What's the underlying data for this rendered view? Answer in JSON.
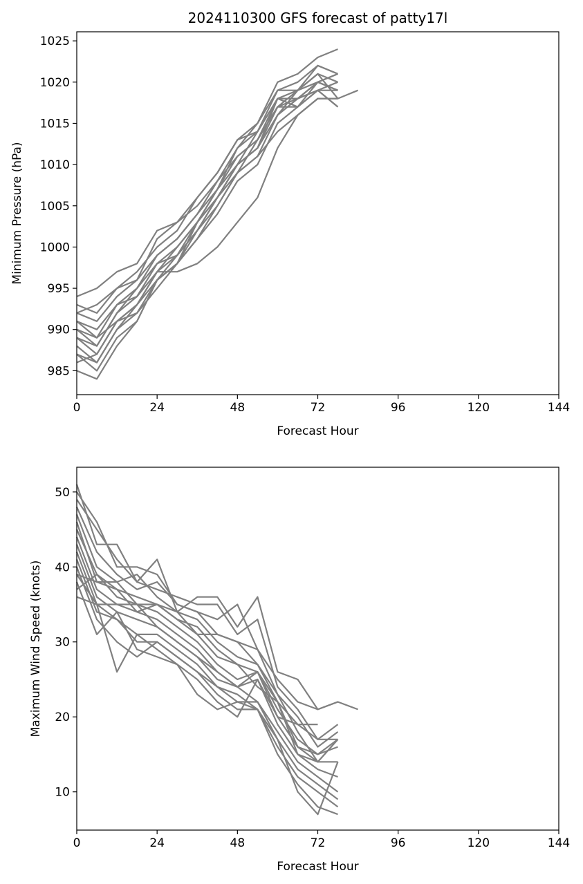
{
  "title": "2024110300 GFS forecast of patty17l",
  "colors": {
    "line": "#808080",
    "axes": "#000000",
    "background": "#ffffff"
  },
  "chart_data": [
    {
      "type": "line",
      "title": "2024110300 GFS forecast of patty17l",
      "xlabel": "Forecast Hour",
      "ylabel": "Minimum Pressure (hPa)",
      "xlim": [
        0,
        144
      ],
      "ylim": [
        982.1,
        1026.1
      ],
      "xticks": [
        0,
        24,
        48,
        72,
        96,
        120,
        144
      ],
      "yticks": [
        985,
        990,
        995,
        1000,
        1005,
        1010,
        1015,
        1020,
        1025
      ],
      "grid": false,
      "legend": "none",
      "series": [
        {
          "x": [
            0,
            6,
            12,
            18,
            24,
            30,
            36,
            42,
            48,
            54,
            60,
            66,
            72,
            78
          ],
          "values": [
            994,
            995,
            997,
            998,
            1002,
            1003,
            1006,
            1009,
            1013,
            1015,
            1020,
            1021,
            1023,
            1024
          ]
        },
        {
          "x": [
            0,
            6,
            12,
            18,
            24,
            30,
            36,
            42,
            48,
            54,
            60,
            66,
            72,
            78
          ],
          "values": [
            993,
            992,
            995,
            996,
            1001,
            1003,
            1005,
            1008,
            1012,
            1015,
            1019,
            1020,
            1022,
            1021
          ]
        },
        {
          "x": [
            0,
            6,
            12,
            18,
            24,
            30,
            36,
            42,
            48,
            54,
            60,
            66,
            72,
            78
          ],
          "values": [
            992,
            993,
            995,
            997,
            1000,
            1002,
            1006,
            1009,
            1013,
            1014,
            1019,
            1019,
            1021,
            1020
          ]
        },
        {
          "x": [
            0,
            6,
            12,
            18,
            24,
            30,
            36,
            42,
            48,
            54,
            60,
            66,
            72,
            78
          ],
          "values": [
            991,
            990,
            993,
            995,
            999,
            1001,
            1004,
            1007,
            1011,
            1013,
            1018,
            1018,
            1020,
            1019
          ]
        },
        {
          "x": [
            0,
            6,
            12,
            18,
            24,
            30,
            36,
            42,
            48,
            54,
            60,
            66,
            72,
            78
          ],
          "values": [
            990,
            988,
            992,
            994,
            998,
            1000,
            1003,
            1007,
            1010,
            1012,
            1017,
            1019,
            1021,
            1018
          ]
        },
        {
          "x": [
            0,
            6,
            12,
            18,
            24,
            30,
            36,
            42,
            48,
            54,
            60,
            66,
            72,
            78
          ],
          "values": [
            989,
            987,
            991,
            993,
            997,
            999,
            1003,
            1006,
            1010,
            1012,
            1018,
            1018,
            1019,
            1017
          ]
        },
        {
          "x": [
            0,
            6,
            12,
            18,
            24,
            30,
            36,
            42,
            48,
            54,
            60,
            66,
            72,
            78
          ],
          "values": [
            988,
            986,
            990,
            992,
            996,
            998,
            1002,
            1005,
            1009,
            1011,
            1016,
            1018,
            1020,
            1021
          ]
        },
        {
          "x": [
            0,
            6,
            12,
            18,
            24,
            30,
            36,
            42,
            48,
            54,
            60,
            66,
            72,
            78
          ],
          "values": [
            987,
            985,
            989,
            991,
            996,
            998,
            1001,
            1004,
            1008,
            1010,
            1015,
            1017,
            1019,
            1019
          ]
        },
        {
          "x": [
            0,
            6,
            12,
            18,
            24,
            30,
            36,
            42,
            48,
            54,
            60,
            66,
            72,
            78,
            84
          ],
          "values": [
            986,
            987,
            991,
            993,
            997,
            997,
            998,
            1000,
            1003,
            1006,
            1012,
            1016,
            1018,
            1018,
            1019
          ]
        },
        {
          "x": [
            0,
            6,
            12,
            18,
            24,
            30,
            36,
            42,
            48,
            54,
            60,
            66,
            72,
            78
          ],
          "values": [
            985,
            984,
            988,
            991,
            996,
            999,
            1002,
            1006,
            1010,
            1014,
            1018,
            1017,
            1019,
            1020
          ]
        },
        {
          "x": [
            0,
            6,
            12,
            18,
            24,
            30,
            36,
            42,
            48,
            54,
            60,
            66,
            72,
            78
          ],
          "values": [
            992,
            991,
            994,
            996,
            999,
            1001,
            1004,
            1008,
            1011,
            1013,
            1017,
            1017,
            1020,
            1019
          ]
        },
        {
          "x": [
            0,
            6,
            12,
            18,
            24,
            30,
            36,
            42,
            48,
            54,
            60,
            66,
            72,
            78
          ],
          "values": [
            989,
            988,
            992,
            995,
            998,
            999,
            1002,
            1006,
            1009,
            1011,
            1014,
            1016,
            1018,
            1018
          ]
        },
        {
          "x": [
            0,
            6,
            12,
            18,
            24,
            30,
            36,
            42,
            48,
            54,
            60,
            66,
            72,
            78
          ],
          "values": [
            990,
            989,
            993,
            994,
            997,
            1000,
            1003,
            1007,
            1012,
            1014,
            1018,
            1019,
            1020,
            1021
          ]
        },
        {
          "x": [
            0,
            6,
            12,
            18,
            24,
            30,
            36,
            42,
            48,
            54,
            60,
            66,
            72,
            78
          ],
          "values": [
            987,
            986,
            990,
            993,
            996,
            998,
            1001,
            1005,
            1009,
            1013,
            1017,
            1018,
            1019,
            1017
          ]
        },
        {
          "x": [
            0,
            6,
            12,
            18,
            24,
            30,
            36,
            42,
            48,
            54,
            60,
            66,
            72,
            78
          ],
          "values": [
            991,
            989,
            991,
            992,
            995,
            998,
            1003,
            1006,
            1010,
            1012,
            1016,
            1019,
            1022,
            1021
          ]
        }
      ]
    },
    {
      "type": "line",
      "title": "",
      "xlabel": "Forecast Hour",
      "ylabel": "Maximum Wind Speed (knots)",
      "xlim": [
        0,
        144
      ],
      "ylim": [
        4.9,
        53.3
      ],
      "xticks": [
        0,
        24,
        48,
        72,
        96,
        120,
        144
      ],
      "yticks": [
        10,
        20,
        30,
        40,
        50
      ],
      "grid": false,
      "legend": "none",
      "series": [
        {
          "x": [
            0,
            6,
            12,
            18,
            24,
            30,
            36,
            42,
            48,
            54,
            60,
            66,
            72,
            78
          ],
          "values": [
            51,
            43,
            43,
            38,
            41,
            34,
            36,
            36,
            32,
            36,
            26,
            25,
            21,
            22
          ]
        },
        {
          "x": [
            0,
            6,
            12,
            18,
            24,
            30,
            36,
            42,
            48,
            54,
            60,
            66,
            72,
            78,
            84
          ],
          "values": [
            50,
            46,
            40,
            40,
            39,
            35,
            34,
            33,
            35,
            29,
            25,
            22,
            21,
            22,
            21
          ]
        },
        {
          "x": [
            0,
            6,
            12,
            18,
            24,
            30,
            36,
            42,
            48,
            54,
            60,
            66,
            72,
            78
          ],
          "values": [
            49,
            45,
            41,
            38,
            37,
            36,
            35,
            35,
            31,
            33,
            24,
            21,
            17,
            19
          ]
        },
        {
          "x": [
            0,
            6,
            12,
            18,
            24,
            30,
            36,
            42,
            48,
            54,
            60,
            66,
            72,
            78
          ],
          "values": [
            48,
            42,
            39,
            37,
            38,
            35,
            34,
            31,
            30,
            29,
            23,
            20,
            16,
            18
          ]
        },
        {
          "x": [
            0,
            6,
            12,
            18,
            24,
            30,
            36,
            42,
            48,
            54,
            60,
            66,
            72,
            78
          ],
          "values": [
            47,
            40,
            38,
            39,
            36,
            34,
            33,
            30,
            28,
            27,
            22,
            19,
            17,
            17
          ]
        },
        {
          "x": [
            0,
            6,
            12,
            18,
            24,
            30,
            36,
            42,
            48,
            54,
            60,
            66,
            72,
            78
          ],
          "values": [
            46,
            38,
            37,
            36,
            35,
            33,
            31,
            28,
            27,
            26,
            21,
            17,
            15,
            17
          ]
        },
        {
          "x": [
            0,
            6,
            12,
            18,
            24,
            30,
            36,
            42,
            48,
            54,
            60,
            66,
            72,
            78
          ],
          "values": [
            45,
            39,
            36,
            35,
            34,
            32,
            30,
            27,
            25,
            26,
            20,
            16,
            14,
            14
          ]
        },
        {
          "x": [
            0,
            6,
            12,
            18,
            24,
            30,
            36,
            42,
            48,
            54,
            60,
            66,
            72,
            78
          ],
          "values": [
            44,
            37,
            35,
            34,
            33,
            31,
            29,
            26,
            24,
            25,
            19,
            15,
            13,
            12
          ]
        },
        {
          "x": [
            0,
            6,
            12,
            18,
            24,
            30,
            36,
            42,
            48,
            54,
            60,
            66,
            72,
            78
          ],
          "values": [
            43,
            36,
            34,
            33,
            32,
            30,
            28,
            25,
            24,
            22,
            18,
            14,
            12,
            10
          ]
        },
        {
          "x": [
            0,
            6,
            12,
            18,
            24,
            30,
            36,
            42,
            48,
            54,
            60,
            66,
            72,
            78
          ],
          "values": [
            42,
            35,
            33,
            31,
            31,
            29,
            27,
            24,
            23,
            21,
            17,
            13,
            11,
            9
          ]
        },
        {
          "x": [
            0,
            6,
            12,
            18,
            24,
            30,
            36,
            42,
            48,
            54,
            60,
            66,
            72,
            78
          ],
          "values": [
            41,
            34,
            33,
            30,
            30,
            28,
            26,
            24,
            22,
            21,
            16,
            12,
            10,
            8
          ]
        },
        {
          "x": [
            0,
            6,
            12,
            18,
            24,
            30,
            36,
            42,
            48,
            54,
            60,
            66,
            72,
            78
          ],
          "values": [
            40,
            33,
            30,
            28,
            30,
            28,
            26,
            23,
            21,
            21,
            15,
            11,
            8,
            7
          ]
        },
        {
          "x": [
            0,
            6,
            12,
            18,
            24,
            30,
            36,
            42,
            48,
            54,
            60,
            66,
            72,
            78
          ],
          "values": [
            39,
            35,
            26,
            31,
            29,
            27,
            23,
            21,
            22,
            22,
            17,
            10,
            7,
            14
          ]
        },
        {
          "x": [
            0,
            6,
            12,
            18,
            24,
            30,
            36,
            42,
            48,
            54,
            60,
            66,
            72
          ],
          "values": [
            38,
            31,
            34,
            29,
            28,
            27,
            25,
            22,
            20,
            25,
            20,
            19,
            19
          ]
        },
        {
          "x": [
            0,
            6,
            12,
            18,
            24,
            30,
            36,
            42,
            48,
            54,
            60,
            66,
            72,
            78
          ],
          "values": [
            37,
            39,
            37,
            34,
            35,
            33,
            32,
            29,
            27,
            24,
            22,
            15,
            14,
            17
          ]
        },
        {
          "x": [
            0,
            6,
            12,
            18,
            24,
            30,
            36,
            42,
            48,
            54,
            60,
            66,
            72,
            78
          ],
          "values": [
            36,
            35,
            35,
            35,
            35,
            34,
            31,
            31,
            30,
            27,
            23,
            18,
            14,
            17
          ]
        },
        {
          "x": [
            0,
            6,
            12,
            18,
            24,
            30,
            36,
            42,
            48,
            54,
            60,
            66,
            72,
            78
          ],
          "values": [
            39,
            38,
            38,
            35,
            32,
            30,
            28,
            26,
            24,
            26,
            22,
            16,
            15,
            16
          ]
        }
      ]
    }
  ]
}
